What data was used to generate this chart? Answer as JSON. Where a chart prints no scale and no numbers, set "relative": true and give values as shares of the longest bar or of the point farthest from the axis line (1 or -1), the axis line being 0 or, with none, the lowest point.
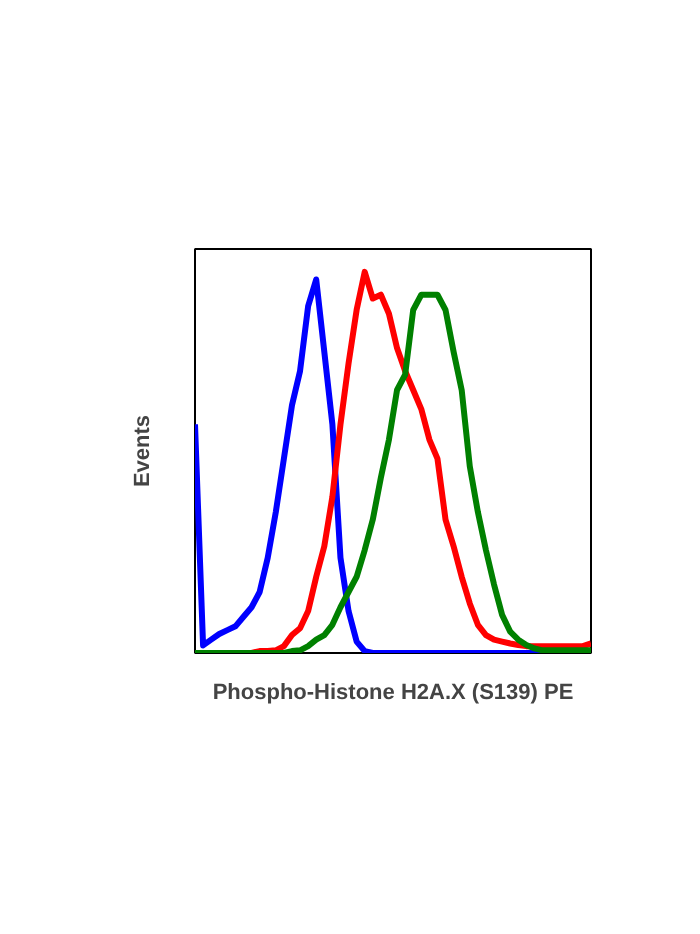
{
  "chart_data": {
    "type": "line",
    "relative": true,
    "xlabel": "Phospho-Histone H2A.X (S139) PE",
    "ylabel": "Events",
    "categories": [
      null,
      null,
      null,
      null,
      null,
      null,
      null,
      null,
      null,
      null,
      null,
      null,
      null,
      null,
      null,
      null,
      null,
      null,
      null,
      null,
      null,
      null,
      null,
      null,
      null,
      null,
      null,
      null,
      null,
      null,
      null,
      null,
      null,
      null,
      null,
      null,
      null,
      null,
      null,
      null,
      null,
      null,
      null,
      null,
      null,
      null,
      null,
      null,
      null,
      null
    ],
    "series": [
      {
        "color": "#0000ff",
        "values": [
          0.6,
          0.02,
          0.035,
          0.05,
          0.06,
          0.07,
          0.095,
          0.12,
          0.16,
          0.25,
          0.37,
          0.51,
          0.65,
          0.74,
          0.91,
          0.98,
          0.79,
          0.6,
          0.25,
          0.11,
          0.03,
          0.005,
          0,
          0,
          0,
          0,
          0,
          0,
          0,
          0,
          0,
          0,
          0,
          0,
          0,
          0,
          0,
          0,
          0,
          0,
          0,
          0,
          0,
          0,
          0,
          null,
          null,
          null,
          null,
          null
        ]
      },
      {
        "color": "#ff0000",
        "values": [
          null,
          null,
          null,
          null,
          null,
          0,
          0,
          0,
          0.005,
          0.005,
          0.007,
          0.018,
          0.047,
          0.065,
          0.11,
          0.2,
          0.28,
          0.41,
          0.6,
          0.76,
          0.9,
          1.0,
          0.93,
          0.94,
          0.89,
          0.8,
          0.74,
          0.69,
          0.64,
          0.56,
          0.51,
          0.35,
          0.28,
          0.2,
          0.13,
          0.074,
          0.047,
          0.035,
          0.03,
          0.025,
          0.021,
          0.018,
          0.018,
          0.018,
          0.018,
          0.018,
          0.018,
          0.018,
          0.018,
          0.025
        ]
      },
      {
        "color": "#008000",
        "values": [
          0,
          0,
          0,
          0,
          0,
          0,
          0,
          0,
          0,
          0,
          0,
          0,
          0.005,
          0.007,
          0.018,
          0.035,
          0.047,
          0.074,
          0.12,
          0.16,
          0.2,
          0.27,
          0.35,
          0.46,
          0.56,
          0.69,
          0.73,
          0.9,
          0.94,
          0.94,
          0.94,
          0.9,
          0.79,
          0.69,
          0.49,
          0.37,
          0.27,
          0.18,
          0.1,
          0.056,
          0.035,
          0.021,
          0.012,
          0.007,
          0.007,
          0.007,
          0.007,
          0.007,
          0.007,
          0.007
        ]
      }
    ]
  }
}
